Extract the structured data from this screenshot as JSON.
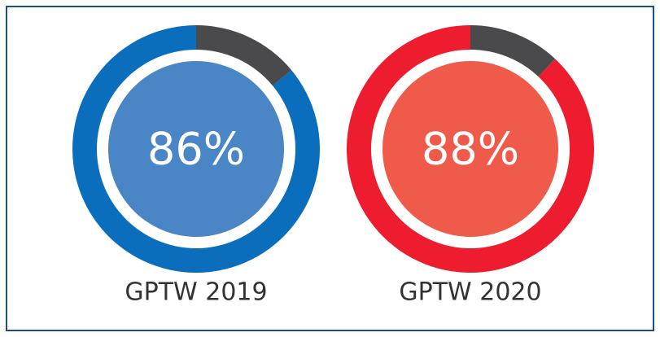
{
  "chart_data": [
    {
      "type": "donut",
      "title": "GPTW 2019",
      "values": [
        86,
        14
      ],
      "value_labels": [
        "86%",
        null
      ],
      "colors": [
        "#0a6ebd",
        "#4a4a4c"
      ],
      "center_color": "#4a86c6"
    },
    {
      "type": "donut",
      "title": "GPTW 2020",
      "values": [
        88,
        12
      ],
      "value_labels": [
        "88%",
        null
      ],
      "colors": [
        "#ed1c2e",
        "#4a4a4c"
      ],
      "center_color": "#f05a4a"
    }
  ]
}
